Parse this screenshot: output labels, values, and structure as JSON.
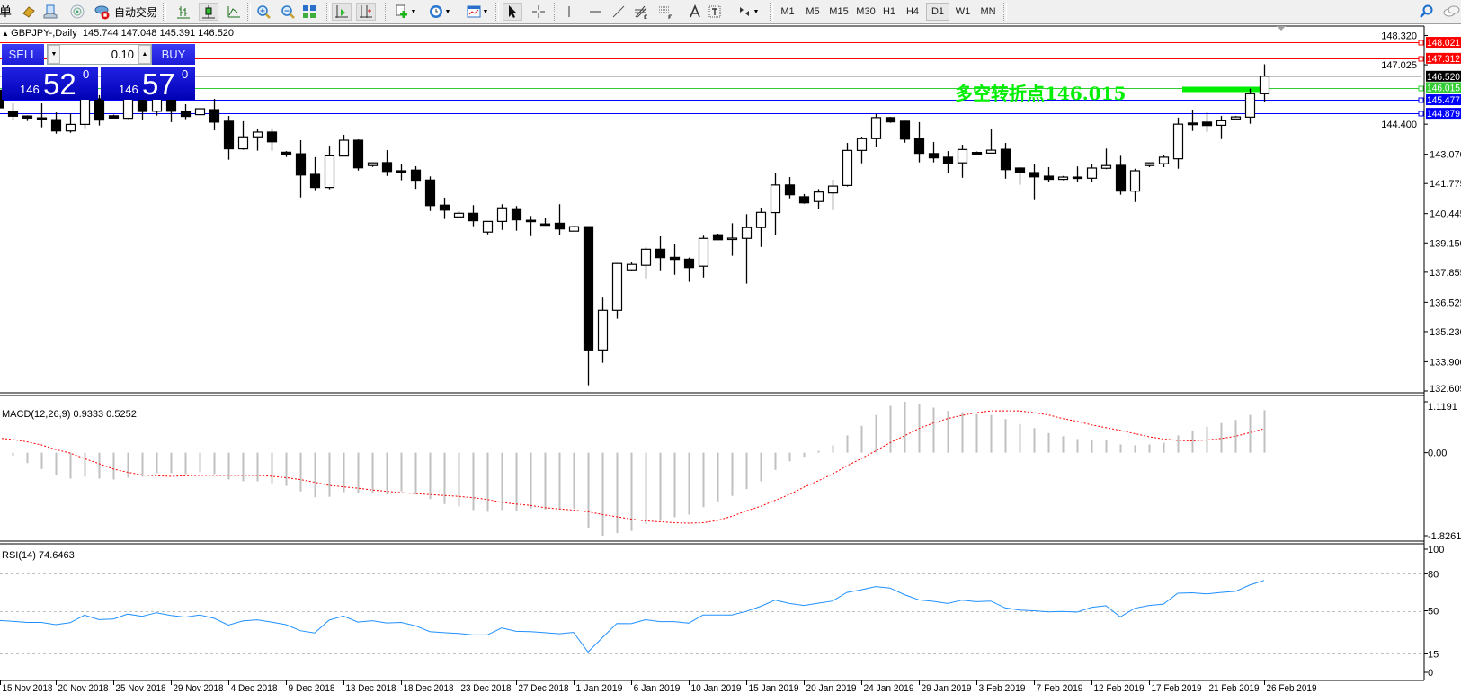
{
  "toolbar": {
    "menu_fragment": "单",
    "autotrade_label": "自动交易",
    "icons": [
      "metaeditor-icon",
      "navigator-icon",
      "signals-icon",
      "autotrade-icon",
      "bar-chart-icon",
      "candlestick-icon",
      "line-chart-icon",
      "zoom-in-icon",
      "zoom-out-icon",
      "tile-windows-icon",
      "autoscroll-icon",
      "chart-shift-icon",
      "new-indicator-icon",
      "periods-icon",
      "templates-icon",
      "cursor-icon",
      "crosshair-icon",
      "vertical-line-icon",
      "horizontal-line-icon",
      "trendline-icon",
      "fibonacci-icon",
      "fibo-fan-icon",
      "text-icon",
      "text-label-icon",
      "arrows-icon",
      "search-icon",
      "chat-icon"
    ],
    "timeframes": [
      "M1",
      "M5",
      "M15",
      "M30",
      "H1",
      "H4",
      "D1",
      "W1",
      "MN"
    ],
    "active_timeframe": "D1"
  },
  "chart": {
    "header": {
      "symbol": "GBPJPY-,Daily",
      "ohlc": "145.744 147.048 145.391 146.520"
    },
    "trade_panel": {
      "sell_label": "SELL",
      "buy_label": "BUY",
      "lot": "0.10",
      "sell_price": {
        "prefix": "146",
        "main": "52",
        "sup": "0"
      },
      "buy_price": {
        "prefix": "146",
        "main": "57",
        "sup": "0"
      }
    },
    "annotation": {
      "text": "多空转折点146.015",
      "color": "#00ee00"
    },
    "price_levels": [
      {
        "price": "148.021",
        "color": "#ff0000",
        "text_color": "#ffffff"
      },
      {
        "price": "147.312",
        "color": "#ff0000",
        "text_color": "#ffffff"
      },
      {
        "price": "146.520",
        "color": "#000000",
        "text_color": "#ffffff",
        "line_color": "#c0c0c0"
      },
      {
        "price": "146.015",
        "color": "#32cd32",
        "text_color": "#ffffff"
      },
      {
        "price": "145.477",
        "color": "#0000ff",
        "text_color": "#ffffff"
      },
      {
        "price": "144.879",
        "color": "#0000ff",
        "text_color": "#ffffff"
      }
    ],
    "price_axis_ticks": [
      "148.320",
      "147.025",
      "144.400",
      "143.070",
      "141.775",
      "140.445",
      "139.150",
      "137.855",
      "136.525",
      "135.230",
      "133.900",
      "132.605"
    ],
    "date_labels": [
      "15 Nov 2018",
      "20 Nov 2018",
      "25 Nov 2018",
      "29 Nov 2018",
      "4 Dec 2018",
      "9 Dec 2018",
      "13 Dec 2018",
      "18 Dec 2018",
      "23 Dec 2018",
      "27 Dec 2018",
      "1 Jan 2019",
      "6 Jan 2019",
      "10 Jan 2019",
      "15 Jan 2019",
      "20 Jan 2019",
      "24 Jan 2019",
      "29 Jan 2019",
      "3 Feb 2019",
      "7 Feb 2019",
      "12 Feb 2019",
      "17 Feb 2019",
      "21 Feb 2019",
      "26 Feb 2019"
    ],
    "macd": {
      "label": "MACD(12,26,9) 0.9333 0.5252",
      "axis": [
        "1.1191",
        "0.00",
        "-1.8261"
      ]
    },
    "rsi": {
      "label": "RSI(14) 74.6463",
      "axis": [
        "100",
        "80",
        "50",
        "15",
        "0"
      ]
    }
  },
  "chart_data": [
    {
      "type": "candlestick",
      "ylim": [
        132.605,
        148.32
      ],
      "colors": {
        "up": "#ffffff",
        "down": "#000000",
        "outline": "#000000"
      },
      "ohlc": [
        [
          145.9,
          146.3,
          145.0,
          145.12
        ],
        [
          144.96,
          145.32,
          144.58,
          144.75
        ],
        [
          144.76,
          144.79,
          144.54,
          144.67
        ],
        [
          144.68,
          145.32,
          144.26,
          144.59
        ],
        [
          144.6,
          144.92,
          143.98,
          144.1
        ],
        [
          144.1,
          144.87,
          144.02,
          144.39
        ],
        [
          144.39,
          145.92,
          144.22,
          145.72
        ],
        [
          145.52,
          145.68,
          144.34,
          144.58
        ],
        [
          144.77,
          144.82,
          144.65,
          144.67
        ],
        [
          144.66,
          145.92,
          144.63,
          145.68
        ],
        [
          145.68,
          145.92,
          144.57,
          144.96
        ],
        [
          144.97,
          145.92,
          144.78,
          145.72
        ],
        [
          145.72,
          145.92,
          144.49,
          144.97
        ],
        [
          144.96,
          145.28,
          144.62,
          144.74
        ],
        [
          144.82,
          145.1,
          144.78,
          145.08
        ],
        [
          145.04,
          145.52,
          144.13,
          144.49
        ],
        [
          144.53,
          144.76,
          142.83,
          143.31
        ],
        [
          143.31,
          144.53,
          143.27,
          143.84
        ],
        [
          143.84,
          144.17,
          143.23,
          144.05
        ],
        [
          144.05,
          144.21,
          143.23,
          143.62
        ],
        [
          143.16,
          143.21,
          142.95,
          143.07
        ],
        [
          143.09,
          143.69,
          141.16,
          142.15
        ],
        [
          142.18,
          142.94,
          141.48,
          141.6
        ],
        [
          141.6,
          143.45,
          141.52,
          143.0
        ],
        [
          142.99,
          143.93,
          142.99,
          143.69
        ],
        [
          143.69,
          143.73,
          142.35,
          142.47
        ],
        [
          142.57,
          142.7,
          142.51,
          142.69
        ],
        [
          142.7,
          143.25,
          142.11,
          142.31
        ],
        [
          142.34,
          142.65,
          141.92,
          142.33
        ],
        [
          142.37,
          142.54,
          141.54,
          141.92
        ],
        [
          141.93,
          142.09,
          140.56,
          140.8
        ],
        [
          140.82,
          141.15,
          140.21,
          140.6
        ],
        [
          140.3,
          140.55,
          140.28,
          140.46
        ],
        [
          140.46,
          140.82,
          139.89,
          140.13
        ],
        [
          139.63,
          140.12,
          139.53,
          140.1
        ],
        [
          140.1,
          140.86,
          139.73,
          140.7
        ],
        [
          140.66,
          140.78,
          139.69,
          140.17
        ],
        [
          140.15,
          140.34,
          139.45,
          140.14
        ],
        [
          139.99,
          140.26,
          139.95,
          139.98
        ],
        [
          140.02,
          140.86,
          139.49,
          139.77
        ],
        [
          139.67,
          139.9,
          139.66,
          139.87
        ],
        [
          139.87,
          139.88,
          132.86,
          134.42
        ],
        [
          134.42,
          136.77,
          133.85,
          136.17
        ],
        [
          136.17,
          138.26,
          135.8,
          138.24
        ],
        [
          137.96,
          138.32,
          137.9,
          138.2
        ],
        [
          138.16,
          138.95,
          137.58,
          138.87
        ],
        [
          138.87,
          139.44,
          137.94,
          138.5
        ],
        [
          138.51,
          139.08,
          137.74,
          138.42
        ],
        [
          138.43,
          138.5,
          137.43,
          138.06
        ],
        [
          138.12,
          139.47,
          137.62,
          139.35
        ],
        [
          139.51,
          139.56,
          139.28,
          139.29
        ],
        [
          139.35,
          140.02,
          138.58,
          139.36
        ],
        [
          139.35,
          140.42,
          137.35,
          139.83
        ],
        [
          139.83,
          140.71,
          138.97,
          140.5
        ],
        [
          140.49,
          142.22,
          139.49,
          141.71
        ],
        [
          141.71,
          142.06,
          141.12,
          141.28
        ],
        [
          141.19,
          141.31,
          140.88,
          140.92
        ],
        [
          140.98,
          141.53,
          140.64,
          141.4
        ],
        [
          141.36,
          141.94,
          140.6,
          141.66
        ],
        [
          141.69,
          143.57,
          141.64,
          143.24
        ],
        [
          143.24,
          143.85,
          142.67,
          143.76
        ],
        [
          143.76,
          144.86,
          143.39,
          144.69
        ],
        [
          144.69,
          144.72,
          144.46,
          144.5
        ],
        [
          144.53,
          144.55,
          143.58,
          143.74
        ],
        [
          143.77,
          144.49,
          142.71,
          143.11
        ],
        [
          143.1,
          143.61,
          142.71,
          142.91
        ],
        [
          142.94,
          143.21,
          142.23,
          142.67
        ],
        [
          142.69,
          143.49,
          142.03,
          143.28
        ],
        [
          143.15,
          143.19,
          143.06,
          143.08
        ],
        [
          143.12,
          144.17,
          143.1,
          143.25
        ],
        [
          143.29,
          143.57,
          141.99,
          142.39
        ],
        [
          142.46,
          142.5,
          141.72,
          142.25
        ],
        [
          142.26,
          142.62,
          141.08,
          142.07
        ],
        [
          142.1,
          142.5,
          141.84,
          141.96
        ],
        [
          141.96,
          142.11,
          141.92,
          142.06
        ],
        [
          142.06,
          142.53,
          141.84,
          142.0
        ],
        [
          142.01,
          142.62,
          141.84,
          142.46
        ],
        [
          142.45,
          143.32,
          142.41,
          142.57
        ],
        [
          142.58,
          143.0,
          141.28,
          141.44
        ],
        [
          141.44,
          142.43,
          140.96,
          142.34
        ],
        [
          142.57,
          142.71,
          142.5,
          142.69
        ],
        [
          142.65,
          143.03,
          142.5,
          142.94
        ],
        [
          142.87,
          144.69,
          142.43,
          144.4
        ],
        [
          144.45,
          145.04,
          144.1,
          144.38
        ],
        [
          144.49,
          144.92,
          144.06,
          144.34
        ],
        [
          144.35,
          144.76,
          143.74,
          144.55
        ],
        [
          144.63,
          144.76,
          144.62,
          144.72
        ],
        [
          144.71,
          145.97,
          144.42,
          145.744
        ],
        [
          145.744,
          147.048,
          145.391,
          146.52
        ]
      ]
    },
    {
      "type": "bar",
      "ylim": [
        -1.8261,
        1.1191
      ],
      "series": [
        {
          "name": "MACD",
          "kind": "histogram",
          "color": "#c0c0c0",
          "values": [
            -0.02,
            -0.07,
            -0.23,
            -0.36,
            -0.49,
            -0.57,
            -0.53,
            -0.57,
            -0.59,
            -0.55,
            -0.53,
            -0.45,
            -0.45,
            -0.47,
            -0.43,
            -0.47,
            -0.59,
            -0.63,
            -0.63,
            -0.67,
            -0.73,
            -0.85,
            -0.98,
            -0.97,
            -0.87,
            -0.88,
            -0.88,
            -0.92,
            -0.85,
            -0.92,
            -1.02,
            -1.13,
            -1.18,
            -1.26,
            -1.3,
            -1.26,
            -1.28,
            -1.23,
            -1.25,
            -1.25,
            -1.23,
            -1.65,
            -1.8261,
            -1.77,
            -1.72,
            -1.57,
            -1.5,
            -1.42,
            -1.36,
            -1.2,
            -1.07,
            -0.95,
            -0.8,
            -0.63,
            -0.38,
            -0.19,
            -0.09,
            0.04,
            0.16,
            0.38,
            0.59,
            0.83,
            1.03,
            1.1191,
            1.08,
            0.99,
            0.92,
            0.89,
            0.85,
            0.83,
            0.74,
            0.63,
            0.54,
            0.43,
            0.36,
            0.3,
            0.28,
            0.28,
            0.18,
            0.16,
            0.18,
            0.22,
            0.38,
            0.49,
            0.57,
            0.65,
            0.72,
            0.83,
            0.9333
          ]
        },
        {
          "name": "Signal",
          "kind": "dotted-line",
          "color": "#ff0000",
          "values": [
            0.32,
            0.29,
            0.24,
            0.17,
            0.07,
            -0.01,
            -0.13,
            -0.24,
            -0.36,
            -0.43,
            -0.49,
            -0.51,
            -0.52,
            -0.51,
            -0.5,
            -0.5,
            -0.5,
            -0.5,
            -0.5,
            -0.52,
            -0.55,
            -0.59,
            -0.65,
            -0.72,
            -0.75,
            -0.78,
            -0.82,
            -0.85,
            -0.88,
            -0.9,
            -0.92,
            -0.94,
            -0.96,
            -0.99,
            -1.03,
            -1.09,
            -1.13,
            -1.16,
            -1.21,
            -1.24,
            -1.26,
            -1.3,
            -1.36,
            -1.41,
            -1.46,
            -1.5,
            -1.52,
            -1.54,
            -1.55,
            -1.54,
            -1.49,
            -1.4,
            -1.28,
            -1.18,
            -1.05,
            -0.92,
            -0.76,
            -0.62,
            -0.47,
            -0.29,
            -0.13,
            0.04,
            0.22,
            0.37,
            0.53,
            0.65,
            0.75,
            0.82,
            0.88,
            0.92,
            0.92,
            0.92,
            0.88,
            0.83,
            0.75,
            0.69,
            0.61,
            0.55,
            0.49,
            0.42,
            0.35,
            0.3,
            0.27,
            0.26,
            0.28,
            0.31,
            0.36,
            0.44,
            0.5252
          ]
        }
      ]
    },
    {
      "type": "line",
      "ylim": [
        0,
        100
      ],
      "levels": [
        80,
        50,
        15
      ],
      "color": "#1e90ff",
      "values": [
        42.1,
        41.4,
        40.5,
        40.5,
        38.7,
        40.3,
        46.4,
        42.8,
        43.2,
        47.3,
        45.5,
        48.4,
        46.2,
        44.8,
        46.6,
        43.9,
        38.3,
        41.7,
        42.6,
        40.8,
        38.7,
        33.8,
        32.0,
        42.3,
        45.7,
        40.8,
        41.9,
        40.1,
        40.5,
        37.8,
        33.1,
        32.2,
        31.5,
        30.4,
        30.4,
        36.0,
        33.3,
        33.1,
        32.2,
        31.3,
        32.4,
        16.4,
        28.2,
        39.6,
        39.5,
        42.7,
        41.2,
        41.2,
        39.9,
        46.6,
        46.6,
        46.6,
        49.5,
        53.6,
        58.6,
        55.9,
        54.3,
        56.1,
        57.9,
        64.9,
        67.1,
        69.6,
        68.5,
        63.1,
        58.8,
        57.7,
        55.9,
        58.6,
        57.4,
        57.9,
        52.3,
        50.5,
        50.0,
        49.1,
        49.5,
        48.9,
        52.7,
        54.1,
        45.0,
        52.0,
        54.3,
        55.4,
        64.2,
        64.6,
        63.7,
        64.9,
        65.8,
        70.9,
        74.6463
      ]
    }
  ]
}
